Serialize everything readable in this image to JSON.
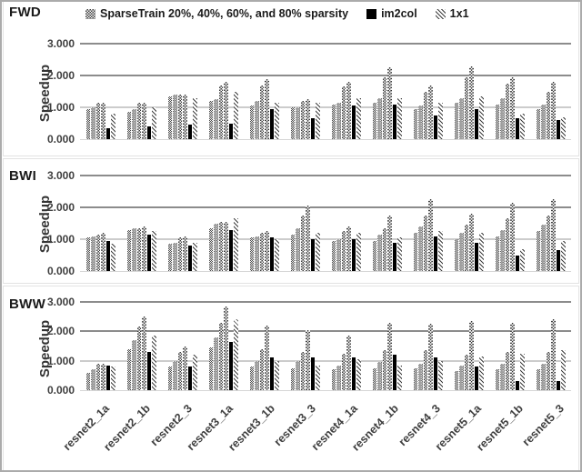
{
  "legend": {
    "items": [
      {
        "label": "SparseTrain 20%, 40%, 60%, and 80% sparsity",
        "swatch": "checker-pattern"
      },
      {
        "label": "im2col",
        "swatch": "solid-black"
      },
      {
        "label": "1x1",
        "swatch": "diagonal-pattern"
      }
    ]
  },
  "colors": {
    "background": "#ffffff",
    "text": "#262626",
    "axis_text": "#3f3f3f",
    "gridline": "#8c8c8c",
    "im2col_bar": "#000000",
    "pattern_ink": "#3f3f3f",
    "frame_border": "#ababab"
  },
  "chart_data": [
    {
      "type": "bar",
      "title": "FWD",
      "ylabel": "Speedup",
      "ylim": [
        0,
        3
      ],
      "ytick_labels": [
        "0.000",
        "1.000",
        "2.000",
        "3.000"
      ],
      "grid": true,
      "legend_position": "top",
      "categories": [
        "resnet2_1a",
        "resnet2_1b",
        "resnet2_3",
        "resnet3_1a",
        "resnet3_1b",
        "resnet3_3",
        "resnet4_1a",
        "resnet4_1b",
        "resnet4_3",
        "resnet5_1a",
        "resnet5_1b",
        "resnet5_3"
      ],
      "series": [
        {
          "key": "st20",
          "name": "SparseTrain 20% sparsity",
          "values": [
            0.95,
            0.85,
            1.35,
            1.2,
            1.05,
            1.0,
            1.1,
            1.15,
            0.95,
            1.15,
            1.1,
            0.95
          ]
        },
        {
          "key": "st40",
          "name": "SparseTrain 40% sparsity",
          "values": [
            1.0,
            0.95,
            1.4,
            1.25,
            1.2,
            1.0,
            1.15,
            1.3,
            1.05,
            1.3,
            1.3,
            1.1
          ]
        },
        {
          "key": "st60",
          "name": "SparseTrain 60% sparsity",
          "values": [
            1.15,
            1.15,
            1.4,
            1.7,
            1.7,
            1.2,
            1.65,
            1.95,
            1.5,
            1.95,
            1.75,
            1.5
          ]
        },
        {
          "key": "st80",
          "name": "SparseTrain 80% sparsity",
          "values": [
            1.15,
            1.15,
            1.4,
            1.8,
            1.9,
            1.25,
            1.8,
            2.25,
            1.7,
            2.3,
            1.95,
            1.8
          ]
        },
        {
          "key": "im2col",
          "name": "im2col",
          "values": [
            0.35,
            0.4,
            0.45,
            0.5,
            0.95,
            0.65,
            1.05,
            1.1,
            0.75,
            0.95,
            0.65,
            0.6
          ]
        },
        {
          "key": "1x1",
          "name": "1x1",
          "values": [
            0.8,
            1.0,
            1.3,
            1.5,
            1.15,
            1.15,
            1.3,
            1.3,
            1.15,
            1.35,
            0.8,
            0.7
          ]
        }
      ]
    },
    {
      "type": "bar",
      "title": "BWI",
      "ylabel": "Speedup",
      "ylim": [
        0,
        3
      ],
      "ytick_labels": [
        "0.000",
        "1.000",
        "2.000",
        "3.000"
      ],
      "grid": true,
      "legend_position": "none",
      "categories": [
        "resnet2_1a",
        "resnet2_1b",
        "resnet2_3",
        "resnet3_1a",
        "resnet3_1b",
        "resnet3_3",
        "resnet4_1a",
        "resnet4_1b",
        "resnet4_3",
        "resnet5_1a",
        "resnet5_1b",
        "resnet5_3"
      ],
      "series": [
        {
          "key": "st20",
          "name": "SparseTrain 20% sparsity",
          "values": [
            1.05,
            1.3,
            0.85,
            1.35,
            1.05,
            1.15,
            0.95,
            0.95,
            1.2,
            1.0,
            1.1,
            1.25
          ]
        },
        {
          "key": "st40",
          "name": "SparseTrain 40% sparsity",
          "values": [
            1.1,
            1.35,
            0.9,
            1.5,
            1.1,
            1.35,
            1.0,
            1.15,
            1.4,
            1.2,
            1.3,
            1.45
          ]
        },
        {
          "key": "st60",
          "name": "SparseTrain 60% sparsity",
          "values": [
            1.15,
            1.35,
            1.05,
            1.55,
            1.2,
            1.75,
            1.25,
            1.35,
            1.75,
            1.45,
            1.65,
            1.75
          ]
        },
        {
          "key": "st80",
          "name": "SparseTrain 80% sparsity",
          "values": [
            1.2,
            1.4,
            1.1,
            1.55,
            1.25,
            2.05,
            1.4,
            1.75,
            2.25,
            1.8,
            2.15,
            2.25
          ]
        },
        {
          "key": "im2col",
          "name": "im2col",
          "values": [
            0.95,
            1.15,
            0.8,
            1.3,
            1.05,
            1.0,
            1.0,
            0.9,
            1.1,
            0.9,
            0.5,
            0.65
          ]
        },
        {
          "key": "1x1",
          "name": "1x1",
          "values": [
            0.85,
            1.25,
            0.9,
            1.65,
            1.0,
            1.2,
            1.2,
            1.05,
            1.25,
            1.2,
            0.7,
            0.95
          ]
        }
      ]
    },
    {
      "type": "bar",
      "title": "BWW",
      "ylabel": "Speedup",
      "ylim": [
        0,
        3
      ],
      "ytick_labels": [
        "0.000",
        "1.000",
        "2.000",
        "3.000"
      ],
      "grid": true,
      "legend_position": "none",
      "categories": [
        "resnet2_1a",
        "resnet2_1b",
        "resnet2_3",
        "resnet3_1a",
        "resnet3_1b",
        "resnet3_3",
        "resnet4_1a",
        "resnet4_1b",
        "resnet4_3",
        "resnet5_1a",
        "resnet5_1b",
        "resnet5_3"
      ],
      "series": [
        {
          "key": "st20",
          "name": "SparseTrain 20% sparsity",
          "values": [
            0.6,
            1.4,
            0.8,
            1.45,
            0.8,
            0.75,
            0.7,
            0.75,
            0.75,
            0.65,
            0.7,
            0.7
          ]
        },
        {
          "key": "st40",
          "name": "SparseTrain 40% sparsity",
          "values": [
            0.7,
            1.7,
            1.0,
            1.8,
            1.0,
            1.0,
            0.85,
            0.95,
            0.9,
            0.85,
            0.9,
            0.9
          ]
        },
        {
          "key": "st60",
          "name": "SparseTrain 60% sparsity",
          "values": [
            0.9,
            2.15,
            1.3,
            2.3,
            1.4,
            1.3,
            1.25,
            1.35,
            1.35,
            1.2,
            1.3,
            1.3
          ]
        },
        {
          "key": "st80",
          "name": "SparseTrain 80% sparsity",
          "values": [
            0.9,
            2.5,
            1.5,
            2.85,
            2.2,
            2.05,
            1.85,
            2.3,
            2.25,
            2.35,
            2.3,
            2.4
          ]
        },
        {
          "key": "im2col",
          "name": "im2col",
          "values": [
            0.85,
            1.3,
            0.8,
            1.65,
            1.1,
            1.1,
            1.1,
            1.2,
            1.1,
            0.8,
            0.3,
            0.3
          ]
        },
        {
          "key": "1x1",
          "name": "1x1",
          "values": [
            0.8,
            1.85,
            1.2,
            2.4,
            1.0,
            0.85,
            1.05,
            0.85,
            1.0,
            1.15,
            1.25,
            1.35
          ]
        }
      ]
    }
  ]
}
